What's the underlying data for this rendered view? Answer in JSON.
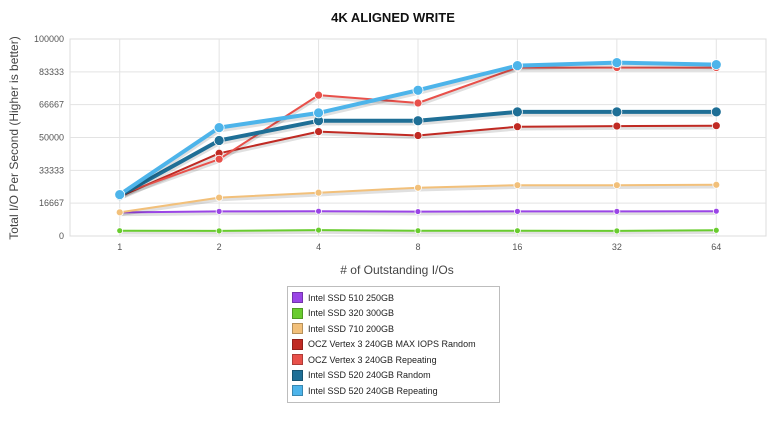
{
  "chart_data": {
    "type": "line",
    "title": "4K ALIGNED WRITE",
    "xlabel": "# of Outstanding I/Os",
    "ylabel": "Total I/O Per Second (Higher is better)",
    "categories": [
      "1",
      "2",
      "4",
      "8",
      "16",
      "32",
      "64"
    ],
    "yticks": [
      "0",
      "16667",
      "33333",
      "50000",
      "66667",
      "83333",
      "100000"
    ],
    "ylim": [
      0,
      100000
    ],
    "grid": true,
    "legend_position": "bottom-center",
    "series": [
      {
        "name": "Intel SSD 510 250GB",
        "color": "#9a45e6",
        "values": [
          12000,
          12500,
          12600,
          12400,
          12500,
          12500,
          12600
        ]
      },
      {
        "name": "Intel SSD 320 300GB",
        "color": "#69cc2f",
        "values": [
          2700,
          2600,
          3000,
          2700,
          2700,
          2600,
          2900
        ]
      },
      {
        "name": "Intel SSD 710 200GB",
        "color": "#f2c07a",
        "values": [
          12000,
          19500,
          22000,
          24500,
          25800,
          25800,
          26000
        ]
      },
      {
        "name": "OCZ Vertex 3 240GB MAX IOPS Random",
        "color": "#c02a23",
        "values": [
          20000,
          42000,
          53000,
          51000,
          55500,
          55800,
          56000
        ]
      },
      {
        "name": "OCZ Vertex 3 240GB Repeating",
        "color": "#e8504a",
        "values": [
          21000,
          39000,
          71500,
          67500,
          85500,
          85500,
          85500
        ]
      },
      {
        "name": "Intel SSD 520 240GB Random",
        "color": "#1f6f96",
        "values": [
          20500,
          48500,
          58500,
          58500,
          63000,
          63000,
          63000
        ]
      },
      {
        "name": "Intel SSD 520 240GB Repeating",
        "color": "#4db4ea",
        "values": [
          21000,
          55000,
          62500,
          74000,
          86500,
          88000,
          87000
        ]
      }
    ]
  }
}
